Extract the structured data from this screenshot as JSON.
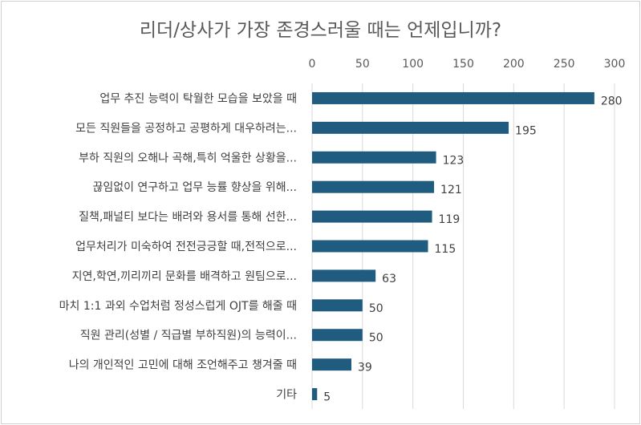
{
  "chart_data": {
    "type": "bar",
    "orientation": "horizontal",
    "title": "리더/상사가 가장 존경스러울 때는 언제입니까?",
    "xlabel": "",
    "ylabel": "",
    "xlim": [
      0,
      300
    ],
    "ticks": [
      0,
      50,
      100,
      150,
      200,
      250,
      300
    ],
    "tick_labels": [
      "0",
      "50",
      "100",
      "150",
      "200",
      "250",
      "300"
    ],
    "axis_position": "top",
    "grid": true,
    "legend": "none",
    "bar_color": "#1f5c7f",
    "categories": [
      "업무 추진 능력이 탁월한 모습을 보았을 때",
      "모든 직원들을 공정하고 공평하게 대우하려는...",
      "부하 직원의 오해나 곡해,특히 억울한 상황을...",
      "끊임없이 연구하고 업무 능률 향상을 위해...",
      "질책,패널티 보다는 배려와 용서를 통해 선한...",
      "업무처리가 미숙하여 전전긍긍할 때,전적으로...",
      "지연,학연,끼리끼리 문화를 배격하고 원팀으로...",
      "마치 1:1 과외 수업처럼 정성스럽게 OJT를 해줄 때",
      "직원 관리(성별 / 직급별 부하직원)의 능력이...",
      "나의 개인적인 고민에 대해 조언해주고 챙겨줄 때",
      "기타"
    ],
    "values": [
      280,
      195,
      123,
      121,
      119,
      115,
      63,
      50,
      50,
      39,
      5
    ],
    "value_labels": [
      "280",
      "195",
      "123",
      "121",
      "119",
      "115",
      "63",
      "50",
      "50",
      "39",
      "5"
    ]
  }
}
